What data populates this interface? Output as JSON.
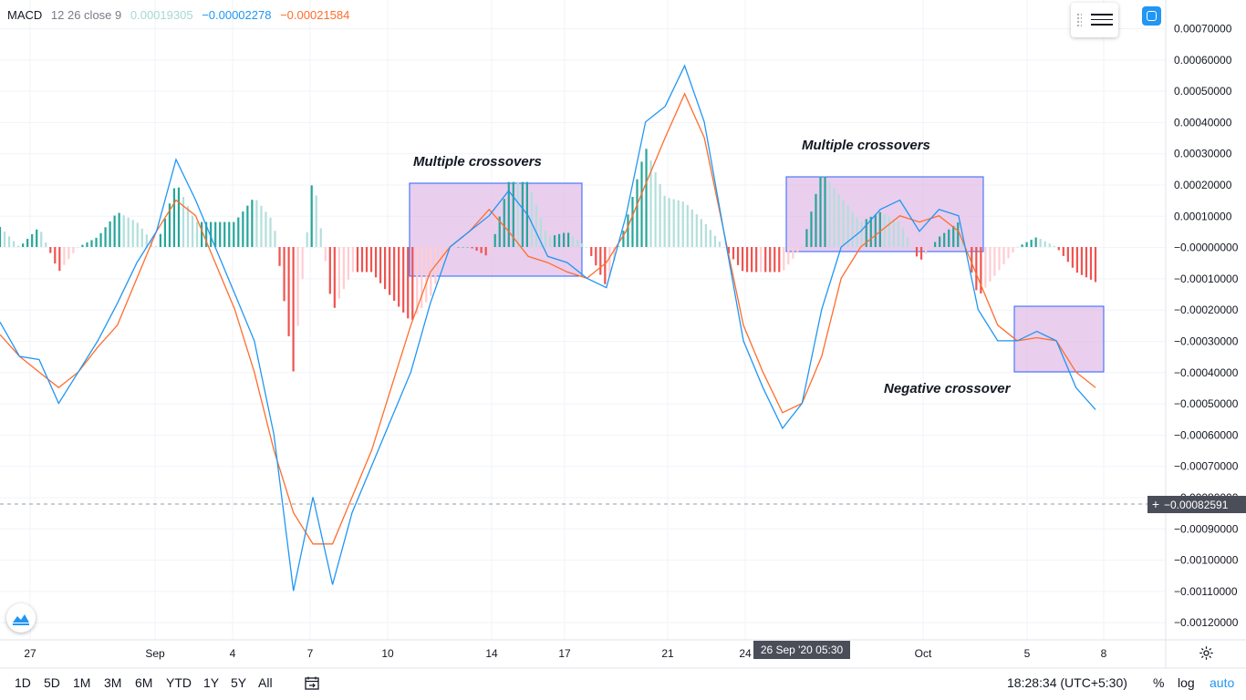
{
  "legend": {
    "title": "MACD",
    "params": "12 26 close 9",
    "hist_value": "0.00019305",
    "macd_value": "−0.00002278",
    "signal_value": "−0.00021584"
  },
  "annotations": [
    {
      "text": "Multiple crossovers"
    },
    {
      "text": "Multiple crossovers"
    },
    {
      "text": "Negative crossover"
    }
  ],
  "price_axis": {
    "labels": [
      "0.00070000",
      "0.00060000",
      "0.00050000",
      "0.00040000",
      "0.00030000",
      "0.00020000",
      "0.00010000",
      "−0.00000000",
      "−0.00010000",
      "−0.00020000",
      "−0.00030000",
      "−0.00040000",
      "−0.00050000",
      "−0.00060000",
      "−0.00070000",
      "−0.00080000",
      "−0.00090000",
      "−0.00100000",
      "−0.00110000",
      "−0.00120000"
    ],
    "crosshair_value": "−0.00082591"
  },
  "time_axis": {
    "labels": [
      "27",
      "Sep",
      "4",
      "7",
      "10",
      "14",
      "17",
      "21",
      "24",
      "Oct",
      "5",
      "8"
    ],
    "crosshair_time": "26 Sep '20   05:30"
  },
  "bottom_bar": {
    "ranges": [
      "1D",
      "5D",
      "1M",
      "3M",
      "6M",
      "YTD",
      "1Y",
      "5Y",
      "All"
    ],
    "clock": "18:28:34 (UTC+5:30)",
    "percent": "%",
    "log": "log",
    "auto": "auto"
  },
  "colors": {
    "macd_line": "#2196f3",
    "signal_line": "#ff6d2d",
    "hist_pos_strong": "#26a69a",
    "hist_pos_weak": "#b2dfdb",
    "hist_neg_strong": "#ef5350",
    "hist_neg_weak": "#ffcdd2",
    "highlight_fill": "#e1bee7",
    "highlight_stroke": "#2962ff"
  },
  "icons": [
    "settings-lines-icon",
    "sync-icon",
    "tradingview-logo-icon",
    "date-range-icon",
    "gear-icon",
    "crosshair-plus-icon"
  ],
  "chart_data": {
    "type": "line",
    "indicator": "MACD 12 26 close 9",
    "ylim": [
      -0.00125,
      0.00072
    ],
    "x_labels": [
      "27",
      "Sep",
      "4",
      "7",
      "10",
      "14",
      "17",
      "21",
      "24",
      "Oct",
      "5",
      "8"
    ],
    "series": [
      {
        "name": "MACD",
        "values": [
          -0.00024,
          -0.00035,
          -0.00036,
          -0.0005,
          -0.0004,
          -0.0003,
          -0.00018,
          -5e-05,
          5e-05,
          0.00028,
          0.00015,
          0.0,
          -0.00015,
          -0.0003,
          -0.0006,
          -0.0011,
          -0.0008,
          -0.00108,
          -0.00085,
          -0.0007,
          -0.00055,
          -0.0004,
          -0.00018,
          0.0,
          5e-05,
          0.0001,
          0.00018,
          0.0001,
          -3e-05,
          -5e-05,
          -0.0001,
          -0.00013,
          0.0001,
          0.0004,
          0.00045,
          0.00058,
          0.0004,
          5e-05,
          -0.0003,
          -0.00045,
          -0.00058,
          -0.0005,
          -0.0002,
          0.0,
          5e-05,
          0.00012,
          0.00015,
          5e-05,
          0.00012,
          0.0001,
          -0.0002,
          -0.0003,
          -0.0003,
          -0.00027,
          -0.0003,
          -0.00045,
          -0.00052
        ]
      },
      {
        "name": "Signal",
        "values": [
          -0.00028,
          -0.00035,
          -0.0004,
          -0.00045,
          -0.0004,
          -0.00032,
          -0.00025,
          -0.0001,
          5e-05,
          0.00015,
          0.0001,
          -5e-05,
          -0.0002,
          -0.0004,
          -0.00065,
          -0.00085,
          -0.00095,
          -0.00095,
          -0.0008,
          -0.00065,
          -0.00045,
          -0.00025,
          -8e-05,
          0.0,
          5e-05,
          0.00012,
          5e-05,
          -3e-05,
          -5e-05,
          -8e-05,
          -0.0001,
          -5e-05,
          5e-05,
          0.0002,
          0.00035,
          0.00049,
          0.00035,
          5e-05,
          -0.00025,
          -0.0004,
          -0.00053,
          -0.0005,
          -0.00035,
          -0.0001,
          0.0,
          5e-05,
          0.0001,
          8e-05,
          0.0001,
          5e-05,
          -0.0001,
          -0.00025,
          -0.0003,
          -0.00029,
          -0.0003,
          -0.0004,
          -0.00045
        ]
      }
    ]
  }
}
